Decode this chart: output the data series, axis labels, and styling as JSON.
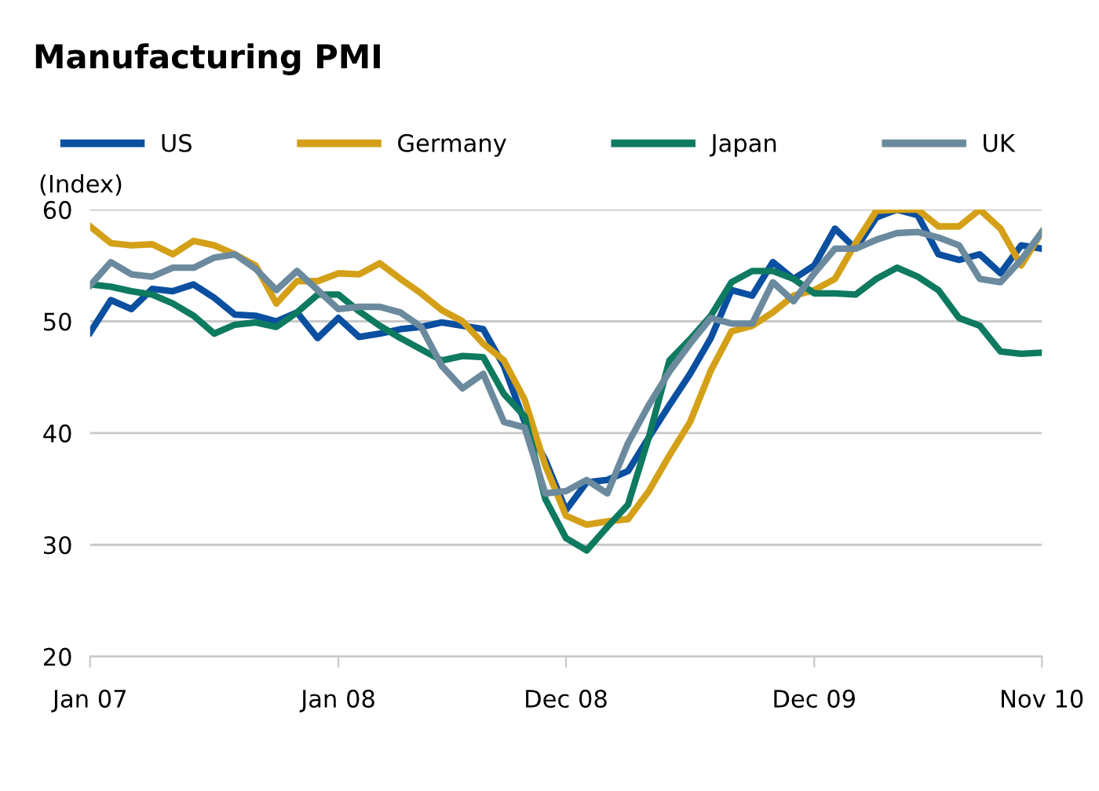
{
  "chart_data": {
    "type": "line",
    "title": "Manufacturing PMI",
    "ylabel": "(Index)",
    "categories": [
      "Jan 07",
      null,
      null,
      null,
      null,
      null,
      null,
      null,
      null,
      null,
      null,
      null,
      "Jan 08",
      null,
      null,
      null,
      null,
      null,
      null,
      null,
      null,
      null,
      null,
      "Dec 08",
      null,
      null,
      null,
      null,
      null,
      null,
      null,
      null,
      null,
      null,
      null,
      "Dec 09",
      null,
      null,
      null,
      null,
      null,
      null,
      null,
      null,
      null,
      null,
      "Nov 10"
    ],
    "series": [
      {
        "name": "US",
        "color": "#0a4fa0",
        "values": [
          49.0,
          51.9,
          51.1,
          52.9,
          52.7,
          53.3,
          52.1,
          50.6,
          50.5,
          50.0,
          50.8,
          48.5,
          50.3,
          48.6,
          48.9,
          49.3,
          49.5,
          49.9,
          49.6,
          49.3,
          46.0,
          41.0,
          37.6,
          33.1,
          35.6,
          35.8,
          36.6,
          39.6,
          42.5,
          45.3,
          48.5,
          52.8,
          52.3,
          55.3,
          53.8,
          55.0,
          58.3,
          56.5,
          59.3,
          60.0,
          59.5,
          56.0,
          55.5,
          56.0,
          54.3,
          56.8,
          56.5
        ]
      },
      {
        "name": "Germany",
        "color": "#d4a017",
        "values": [
          58.5,
          57.0,
          56.8,
          56.9,
          56.0,
          57.2,
          56.8,
          56.0,
          55.0,
          51.6,
          53.6,
          53.6,
          54.3,
          54.2,
          55.2,
          53.8,
          52.5,
          51.0,
          50.0,
          48.0,
          46.5,
          43.0,
          37.1,
          32.6,
          31.8,
          32.1,
          32.3,
          34.8,
          38.0,
          41.0,
          45.6,
          49.1,
          49.6,
          50.8,
          52.3,
          52.8,
          53.8,
          57.0,
          59.9,
          60.0,
          60.0,
          58.5,
          58.5,
          60.0,
          58.3,
          55.0,
          58.0
        ]
      },
      {
        "name": "Japan",
        "color": "#0e7a5f",
        "values": [
          53.3,
          53.1,
          52.7,
          52.4,
          51.6,
          50.5,
          48.9,
          49.7,
          49.9,
          49.5,
          50.8,
          52.4,
          52.4,
          50.9,
          49.6,
          48.5,
          47.5,
          46.5,
          46.9,
          46.8,
          43.5,
          41.5,
          34.1,
          30.6,
          29.5,
          31.6,
          33.6,
          39.6,
          46.5,
          48.4,
          50.5,
          53.5,
          54.5,
          54.5,
          53.8,
          52.5,
          52.5,
          52.4,
          53.8,
          54.8,
          54.0,
          52.8,
          50.3,
          49.6,
          47.3,
          47.1,
          47.2
        ]
      },
      {
        "name": "UK",
        "color": "#6b8a9e",
        "values": [
          53.2,
          55.3,
          54.2,
          54.0,
          54.8,
          54.8,
          55.7,
          56.0,
          54.7,
          52.8,
          54.5,
          52.8,
          51.1,
          51.3,
          51.3,
          50.8,
          49.5,
          46.0,
          44.0,
          45.3,
          41.0,
          40.5,
          34.6,
          34.8,
          35.8,
          34.6,
          39.1,
          42.5,
          45.5,
          48.0,
          50.3,
          49.8,
          49.8,
          53.5,
          51.8,
          54.3,
          56.5,
          56.5,
          57.3,
          57.9,
          58.0,
          57.5,
          56.8,
          53.8,
          53.5,
          55.5,
          58.0
        ]
      }
    ],
    "ylim": [
      20,
      60
    ],
    "yticks": [
      20,
      30,
      40,
      50,
      60
    ],
    "grid": "y",
    "legend": "top",
    "marker": "none",
    "line_style": "solid"
  }
}
